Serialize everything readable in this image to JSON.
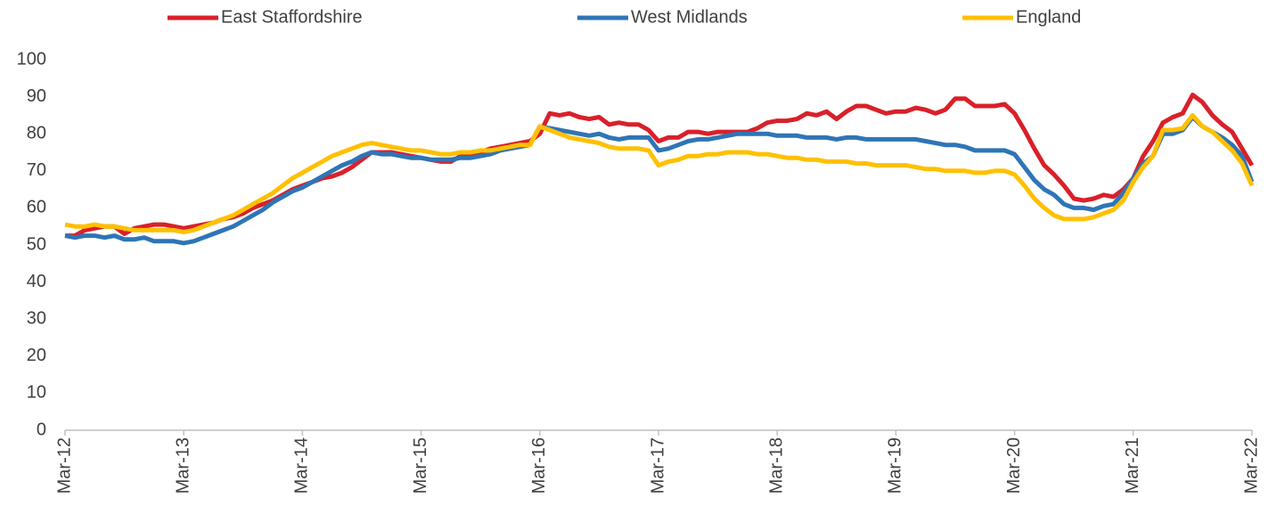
{
  "chart_data": {
    "type": "line",
    "categories": [
      "Mar-12",
      null,
      null,
      null,
      null,
      null,
      null,
      null,
      null,
      null,
      null,
      null,
      "Mar-13",
      null,
      null,
      null,
      null,
      null,
      null,
      null,
      null,
      null,
      null,
      null,
      "Mar-14",
      null,
      null,
      null,
      null,
      null,
      null,
      null,
      null,
      null,
      null,
      null,
      "Mar-15",
      null,
      null,
      null,
      null,
      null,
      null,
      null,
      null,
      null,
      null,
      null,
      "Mar-16",
      null,
      null,
      null,
      null,
      null,
      null,
      null,
      null,
      null,
      null,
      null,
      "Mar-17",
      null,
      null,
      null,
      null,
      null,
      null,
      null,
      null,
      null,
      null,
      null,
      "Mar-18",
      null,
      null,
      null,
      null,
      null,
      null,
      null,
      null,
      null,
      null,
      null,
      "Mar-19",
      null,
      null,
      null,
      null,
      null,
      null,
      null,
      null,
      null,
      null,
      null,
      "Mar-20",
      null,
      null,
      null,
      null,
      null,
      null,
      null,
      null,
      null,
      null,
      null,
      "Mar-21",
      null,
      null,
      null,
      null,
      null,
      null,
      null,
      null,
      null,
      null,
      null,
      "Mar-22"
    ],
    "series": [
      {
        "name": "East Staffordshire",
        "color": "#d9202a",
        "values": [
          52.5,
          52.5,
          54,
          54.5,
          55,
          55,
          53,
          54.5,
          55,
          55.5,
          55.5,
          55,
          54.5,
          55,
          55.5,
          56,
          57,
          57.5,
          58.5,
          60,
          61,
          62,
          63.5,
          65,
          66,
          67,
          68,
          68.5,
          69.5,
          71,
          73,
          75,
          75,
          75,
          74.5,
          74,
          73.5,
          73,
          72.5,
          72.5,
          74,
          74.5,
          75,
          76,
          76.5,
          77,
          77.5,
          78,
          80,
          85.5,
          85,
          85.5,
          84.5,
          84,
          84.5,
          82.5,
          83,
          82.5,
          82.5,
          81,
          78,
          79,
          79,
          80.5,
          80.5,
          80,
          80.5,
          80.5,
          80.5,
          80.5,
          81.5,
          83,
          83.5,
          83.5,
          84,
          85.5,
          85,
          86,
          84,
          86,
          87.5,
          87.5,
          86.5,
          85.5,
          86,
          86,
          87,
          86.5,
          85.5,
          86.5,
          89.5,
          89.5,
          87.5,
          87.5,
          87.5,
          88,
          85.5,
          81,
          76,
          71.5,
          69,
          66,
          62.5,
          62,
          62.5,
          63.5,
          63,
          65,
          68,
          74,
          78,
          83,
          84.5,
          85.5,
          90.5,
          88.5,
          85,
          82.5,
          80.5,
          76,
          71.5
        ]
      },
      {
        "name": "West Midlands",
        "color": "#2e75b6",
        "values": [
          52.5,
          52,
          52.5,
          52.5,
          52,
          52.5,
          51.5,
          51.5,
          52,
          51,
          51,
          51,
          50.5,
          51,
          52,
          53,
          54,
          55,
          56.5,
          58,
          59.5,
          61.5,
          63,
          64.5,
          65.5,
          67,
          68.5,
          70,
          71.5,
          72.5,
          74,
          75,
          74.5,
          74.5,
          74,
          73.5,
          73.5,
          73,
          73,
          73,
          73.5,
          73.5,
          74,
          74.5,
          75.5,
          76,
          76.5,
          77,
          82,
          81.5,
          81,
          80.5,
          80,
          79.5,
          80,
          79,
          78.5,
          79,
          79,
          79,
          75.5,
          76,
          77,
          78,
          78.5,
          78.5,
          79,
          79.5,
          80,
          80,
          80,
          80,
          79.5,
          79.5,
          79.5,
          79,
          79,
          79,
          78.5,
          79,
          79,
          78.5,
          78.5,
          78.5,
          78.5,
          78.5,
          78.5,
          78,
          77.5,
          77,
          77,
          76.5,
          75.5,
          75.5,
          75.5,
          75.5,
          74.5,
          71,
          67.5,
          65,
          63.5,
          61,
          60,
          60,
          59.5,
          60.5,
          61,
          64,
          68,
          72,
          74,
          80,
          80,
          81,
          84.5,
          82,
          80.5,
          79,
          77,
          74,
          67
        ]
      },
      {
        "name": "England",
        "color": "#ffc000",
        "values": [
          55.5,
          55,
          55,
          55.5,
          55,
          55,
          54.5,
          54,
          54,
          54,
          54,
          54,
          53.5,
          54,
          55,
          56,
          57,
          58,
          59.5,
          61,
          62.5,
          64,
          66,
          68,
          69.5,
          71,
          72.5,
          74,
          75,
          76,
          77,
          77.5,
          77,
          76.5,
          76,
          75.5,
          75.5,
          75,
          74.5,
          74.5,
          75,
          75,
          75.5,
          75.5,
          76,
          76.5,
          77,
          77,
          82,
          81,
          80,
          79,
          78.5,
          78,
          77.5,
          76.5,
          76,
          76,
          76,
          75.5,
          71.5,
          72.5,
          73,
          74,
          74,
          74.5,
          74.5,
          75,
          75,
          75,
          74.5,
          74.5,
          74,
          73.5,
          73.5,
          73,
          73,
          72.5,
          72.5,
          72.5,
          72,
          72,
          71.5,
          71.5,
          71.5,
          71.5,
          71,
          70.5,
          70.5,
          70,
          70,
          70,
          69.5,
          69.5,
          70,
          70,
          69,
          66,
          62.5,
          60,
          58,
          57,
          57,
          57,
          57.5,
          58.5,
          59.5,
          62,
          67,
          71,
          74,
          81,
          81,
          81.5,
          85,
          82,
          80.5,
          78,
          75.5,
          72,
          66
        ]
      }
    ],
    "ylim": [
      0,
      100
    ],
    "yticks": [
      0,
      10,
      20,
      30,
      40,
      50,
      60,
      70,
      80,
      90,
      100
    ],
    "grid": false,
    "legend": "top"
  }
}
